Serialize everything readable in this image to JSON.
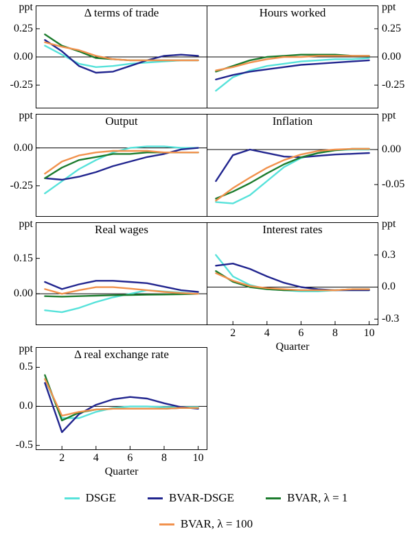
{
  "figure": {
    "unit_label": "ppt",
    "xlabel": "Quarter",
    "colors": {
      "DSGE": "#56e2da",
      "BVAR-DSGE": "#20248e",
      "BVAR, λ = 1": "#1b7b2c",
      "BVAR, λ = 100": "#f1914c"
    }
  },
  "legend": {
    "rows": [
      [
        "DSGE",
        "BVAR-DSGE",
        "BVAR, λ = 1"
      ],
      [
        "BVAR, λ = 100"
      ]
    ]
  },
  "chart_data": [
    {
      "type": "line",
      "title": "Δ terms of trade",
      "position": "row1-left",
      "axis_side": "left",
      "unit": "ppt",
      "x": [
        1,
        2,
        3,
        4,
        5,
        6,
        7,
        8,
        9,
        10
      ],
      "ylim": [
        -0.45,
        0.45
      ],
      "ytick_values": [
        0.25,
        0.0,
        -0.25
      ],
      "yticks": [
        "0.25",
        "0.00",
        "-0.25"
      ],
      "xtick_values": [],
      "xticks": [],
      "xlabel": "",
      "series": [
        {
          "name": "DSGE",
          "values": [
            0.1,
            0.02,
            -0.06,
            -0.09,
            -0.08,
            -0.06,
            -0.05,
            -0.04,
            -0.03,
            -0.03
          ]
        },
        {
          "name": "BVAR-DSGE",
          "values": [
            0.15,
            0.05,
            -0.08,
            -0.14,
            -0.13,
            -0.08,
            -0.03,
            0.01,
            0.02,
            0.01
          ]
        },
        {
          "name": "BVAR, λ = 1",
          "values": [
            0.2,
            0.1,
            0.05,
            -0.01,
            -0.02,
            -0.03,
            -0.03,
            -0.03,
            -0.03,
            -0.03
          ]
        },
        {
          "name": "BVAR, λ = 100",
          "values": [
            0.13,
            0.09,
            0.06,
            0.01,
            -0.02,
            -0.03,
            -0.03,
            -0.03,
            -0.03,
            -0.03
          ]
        }
      ]
    },
    {
      "type": "line",
      "title": "Hours worked",
      "position": "row1-right",
      "axis_side": "right",
      "unit": "ppt",
      "x": [
        1,
        2,
        3,
        4,
        5,
        6,
        7,
        8,
        9,
        10
      ],
      "ylim": [
        -0.45,
        0.45
      ],
      "ytick_values": [
        0.25,
        0.0,
        -0.25
      ],
      "yticks": [
        "0.25",
        "0.00",
        "-0.25"
      ],
      "xtick_values": [],
      "xticks": [],
      "xlabel": "",
      "series": [
        {
          "name": "DSGE",
          "values": [
            -0.3,
            -0.18,
            -0.12,
            -0.08,
            -0.06,
            -0.04,
            -0.03,
            -0.02,
            -0.02,
            -0.01
          ]
        },
        {
          "name": "BVAR-DSGE",
          "values": [
            -0.2,
            -0.16,
            -0.13,
            -0.11,
            -0.09,
            -0.07,
            -0.06,
            -0.05,
            -0.04,
            -0.03
          ]
        },
        {
          "name": "BVAR, λ = 1",
          "values": [
            -0.13,
            -0.08,
            -0.03,
            0.0,
            0.01,
            0.02,
            0.02,
            0.02,
            0.01,
            0.01
          ]
        },
        {
          "name": "BVAR, λ = 100",
          "values": [
            -0.12,
            -0.09,
            -0.05,
            -0.02,
            0.0,
            0.0,
            0.01,
            0.01,
            0.01,
            0.01
          ]
        }
      ]
    },
    {
      "type": "line",
      "title": "Output",
      "position": "row2-left",
      "axis_side": "left",
      "unit": "ppt",
      "x": [
        1,
        2,
        3,
        4,
        5,
        6,
        7,
        8,
        9,
        10
      ],
      "ylim": [
        -0.45,
        0.22
      ],
      "ytick_values": [
        0.0,
        -0.25
      ],
      "yticks": [
        "0.00",
        "-0.25"
      ],
      "xtick_values": [],
      "xticks": [],
      "xlabel": "",
      "series": [
        {
          "name": "DSGE",
          "values": [
            -0.3,
            -0.22,
            -0.14,
            -0.08,
            -0.03,
            0.0,
            0.01,
            0.01,
            0.0,
            0.0
          ]
        },
        {
          "name": "BVAR-DSGE",
          "values": [
            -0.2,
            -0.21,
            -0.19,
            -0.16,
            -0.12,
            -0.09,
            -0.06,
            -0.04,
            -0.01,
            0.0
          ]
        },
        {
          "name": "BVAR, λ = 1",
          "values": [
            -0.2,
            -0.13,
            -0.08,
            -0.06,
            -0.04,
            -0.04,
            -0.03,
            -0.03,
            -0.03,
            -0.03
          ]
        },
        {
          "name": "BVAR, λ = 100",
          "values": [
            -0.17,
            -0.09,
            -0.05,
            -0.03,
            -0.02,
            -0.02,
            -0.02,
            -0.03,
            -0.03,
            -0.03
          ]
        }
      ]
    },
    {
      "type": "line",
      "title": "Inflation",
      "position": "row2-right",
      "axis_side": "right",
      "unit": "ppt",
      "x": [
        1,
        2,
        3,
        4,
        5,
        6,
        7,
        8,
        9,
        10
      ],
      "ylim": [
        -0.095,
        0.05
      ],
      "ytick_values": [
        0.0,
        -0.05
      ],
      "yticks": [
        "0.00",
        "-0.05"
      ],
      "xtick_values": [],
      "xticks": [],
      "xlabel": "",
      "series": [
        {
          "name": "DSGE",
          "values": [
            -0.075,
            -0.077,
            -0.065,
            -0.045,
            -0.025,
            -0.012,
            -0.005,
            -0.001,
            0.0,
            0.0
          ]
        },
        {
          "name": "BVAR-DSGE",
          "values": [
            -0.045,
            -0.008,
            0.0,
            -0.005,
            -0.01,
            -0.011,
            -0.009,
            -0.007,
            -0.006,
            -0.005
          ]
        },
        {
          "name": "BVAR, λ = 1",
          "values": [
            -0.07,
            -0.06,
            -0.048,
            -0.034,
            -0.021,
            -0.011,
            -0.005,
            -0.001,
            0.001,
            0.001
          ]
        },
        {
          "name": "BVAR, λ = 100",
          "values": [
            -0.073,
            -0.055,
            -0.04,
            -0.026,
            -0.015,
            -0.007,
            -0.002,
            0.0,
            0.001,
            0.001
          ]
        }
      ]
    },
    {
      "type": "line",
      "title": "Real wages",
      "position": "row3-left",
      "axis_side": "left",
      "unit": "ppt",
      "x": [
        1,
        2,
        3,
        4,
        5,
        6,
        7,
        8,
        9,
        10
      ],
      "ylim": [
        -0.13,
        0.3
      ],
      "ytick_values": [
        0.15,
        0.0
      ],
      "yticks": [
        "0.15",
        "0.00"
      ],
      "xtick_values": [],
      "xticks": [],
      "xlabel": "",
      "series": [
        {
          "name": "DSGE",
          "values": [
            -0.07,
            -0.078,
            -0.06,
            -0.035,
            -0.015,
            0.0,
            0.015,
            0.01,
            0.005,
            0.0
          ]
        },
        {
          "name": "BVAR-DSGE",
          "values": [
            0.05,
            0.02,
            0.04,
            0.055,
            0.055,
            0.05,
            0.045,
            0.03,
            0.015,
            0.008
          ]
        },
        {
          "name": "BVAR, λ = 1",
          "values": [
            -0.01,
            -0.012,
            -0.01,
            -0.008,
            -0.006,
            -0.005,
            -0.004,
            -0.003,
            -0.002,
            0.0
          ]
        },
        {
          "name": "BVAR, λ = 100",
          "values": [
            0.02,
            0.0,
            0.015,
            0.028,
            0.028,
            0.022,
            0.015,
            0.008,
            0.003,
            0.0
          ]
        }
      ]
    },
    {
      "type": "line",
      "title": "Interest rates",
      "position": "row3-right",
      "axis_side": "right",
      "unit": "ppt",
      "x": [
        1,
        2,
        3,
        4,
        5,
        6,
        7,
        8,
        9,
        10
      ],
      "ylim": [
        -0.35,
        0.6
      ],
      "ytick_values": [
        0.3,
        0.0,
        -0.3
      ],
      "yticks": [
        "0.3",
        "0.0",
        "-0.3"
      ],
      "xtick_values": [
        2,
        4,
        6,
        8,
        10
      ],
      "xticks": [
        "2",
        "4",
        "6",
        "8",
        "10"
      ],
      "xlabel": "Quarter",
      "series": [
        {
          "name": "DSGE",
          "values": [
            0.3,
            0.1,
            0.02,
            -0.02,
            -0.03,
            -0.04,
            -0.04,
            -0.03,
            -0.03,
            -0.03
          ]
        },
        {
          "name": "BVAR-DSGE",
          "values": [
            0.2,
            0.22,
            0.17,
            0.1,
            0.04,
            0.0,
            -0.02,
            -0.03,
            -0.03,
            -0.03
          ]
        },
        {
          "name": "BVAR, λ = 1",
          "values": [
            0.15,
            0.05,
            0.0,
            -0.02,
            -0.03,
            -0.03,
            -0.03,
            -0.03,
            -0.02,
            -0.02
          ]
        },
        {
          "name": "BVAR, λ = 100",
          "values": [
            0.13,
            0.06,
            0.01,
            -0.01,
            -0.02,
            -0.03,
            -0.03,
            -0.03,
            -0.02,
            -0.02
          ]
        }
      ]
    },
    {
      "type": "line",
      "title": "Δ real exchange rate",
      "position": "row4-left",
      "axis_side": "left",
      "unit": "ppt",
      "x": [
        1,
        2,
        3,
        4,
        5,
        6,
        7,
        8,
        9,
        10
      ],
      "ylim": [
        -0.55,
        0.75
      ],
      "ytick_values": [
        0.5,
        0.0,
        -0.5
      ],
      "yticks": [
        "0.5",
        "0.0",
        "-0.5"
      ],
      "xtick_values": [
        2,
        4,
        6,
        8,
        10
      ],
      "xticks": [
        "2",
        "4",
        "6",
        "8",
        "10"
      ],
      "xlabel": "Quarter",
      "series": [
        {
          "name": "DSGE",
          "values": [
            0.35,
            -0.15,
            -0.15,
            -0.07,
            -0.02,
            0.0,
            0.0,
            -0.01,
            -0.01,
            -0.01
          ]
        },
        {
          "name": "BVAR-DSGE",
          "values": [
            0.3,
            -0.33,
            -0.1,
            0.02,
            0.09,
            0.12,
            0.1,
            0.04,
            -0.01,
            -0.03
          ]
        },
        {
          "name": "BVAR, λ = 1",
          "values": [
            0.4,
            -0.18,
            -0.08,
            -0.04,
            -0.03,
            -0.03,
            -0.03,
            -0.03,
            -0.02,
            -0.02
          ]
        },
        {
          "name": "BVAR, λ = 100",
          "values": [
            0.35,
            -0.12,
            -0.07,
            -0.04,
            -0.03,
            -0.03,
            -0.03,
            -0.03,
            -0.02,
            -0.02
          ]
        }
      ]
    }
  ]
}
